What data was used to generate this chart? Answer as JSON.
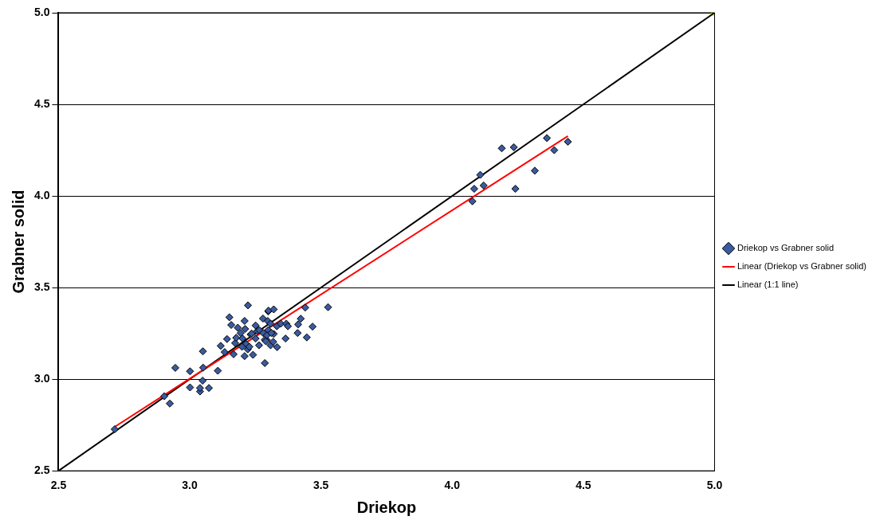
{
  "chart_data": {
    "type": "scatter",
    "xlabel": "Driekop",
    "ylabel": "Grabner solid",
    "xlim": [
      2.5,
      5
    ],
    "ylim": [
      2.5,
      5
    ],
    "xticks": [
      {
        "value": 2.5,
        "label": "2.5"
      },
      {
        "value": 3,
        "label": "3.0"
      },
      {
        "value": 3.5,
        "label": "3.5"
      },
      {
        "value": 4,
        "label": "4.0"
      },
      {
        "value": 4.5,
        "label": "4.5"
      },
      {
        "value": 5,
        "label": "5.0"
      }
    ],
    "yticks": [
      {
        "value": 2.5,
        "label": "2.5"
      },
      {
        "value": 3,
        "label": "3.0"
      },
      {
        "value": 3.5,
        "label": "3.5"
      },
      {
        "value": 4,
        "label": "4.0"
      },
      {
        "value": 4.5,
        "label": "4.5"
      },
      {
        "value": 5,
        "label": "5.0"
      }
    ],
    "grid": "y",
    "legend": "right",
    "series": [
      {
        "name": "Driekop vs Grabner solid",
        "marker": "diamond",
        "color": "#3a5ba0",
        "x": [
          2.714,
          2.903,
          2.924,
          2.945,
          3.001,
          3.001,
          3.039,
          3.039,
          3.049,
          3.073,
          3.051,
          3.05,
          3.107,
          3.118,
          3.133,
          3.142,
          3.151,
          3.158,
          3.167,
          3.173,
          3.177,
          3.183,
          3.201,
          3.209,
          3.211,
          3.209,
          3.222,
          3.221,
          3.241,
          3.232,
          3.251,
          3.264,
          3.279,
          3.286,
          3.299,
          3.293,
          3.3,
          3.32,
          3.297,
          3.308,
          3.332,
          3.347,
          3.368,
          3.374,
          3.413,
          3.423,
          3.44,
          3.468,
          3.527,
          3.411,
          3.446,
          3.365,
          3.32,
          3.333,
          3.308,
          3.215,
          3.236,
          3.257,
          3.265,
          3.299,
          3.286,
          3.29,
          3.318,
          3.251,
          3.194,
          3.199,
          3.227,
          3.28,
          3.294,
          3.311,
          4.189,
          4.235,
          4.361,
          4.441,
          4.389,
          4.315,
          4.107,
          4.084,
          4.12,
          4.241,
          4.077
        ],
        "values": [
          2.727,
          2.907,
          2.867,
          3.062,
          3.043,
          2.955,
          2.933,
          2.952,
          2.992,
          2.952,
          3.063,
          3.152,
          3.046,
          3.182,
          3.148,
          3.219,
          3.338,
          3.296,
          3.136,
          3.197,
          3.226,
          3.281,
          3.222,
          3.318,
          3.274,
          3.126,
          3.403,
          3.163,
          3.133,
          3.244,
          3.293,
          3.185,
          3.331,
          3.088,
          3.37,
          3.215,
          3.374,
          3.381,
          3.318,
          3.303,
          3.289,
          3.303,
          3.303,
          3.289,
          3.299,
          3.33,
          3.391,
          3.287,
          3.393,
          3.252,
          3.228,
          3.222,
          3.247,
          3.175,
          3.185,
          3.192,
          3.249,
          3.263,
          3.268,
          3.268,
          3.215,
          3.207,
          3.204,
          3.222,
          3.252,
          3.177,
          3.177,
          3.252,
          3.24,
          3.252,
          4.26,
          4.266,
          4.316,
          4.296,
          4.25,
          4.138,
          4.115,
          4.039,
          4.057,
          4.039,
          3.971
        ]
      },
      {
        "name": "Linear (Driekop vs Grabner solid)",
        "type": "line",
        "marker": "none",
        "color": "#ff0000",
        "x": [
          2.714,
          4.441
        ],
        "values": [
          2.74,
          4.327
        ]
      },
      {
        "name": "Linear (1:1 line)",
        "type": "line",
        "marker": "none",
        "color": "#000000",
        "x": [
          2.5,
          5
        ],
        "values": [
          2.5,
          5
        ]
      },
      {
        "type": "scatter",
        "marker": "triangle",
        "color": "#ffff00",
        "x": [
          5
        ],
        "values": [
          5
        ]
      }
    ]
  }
}
